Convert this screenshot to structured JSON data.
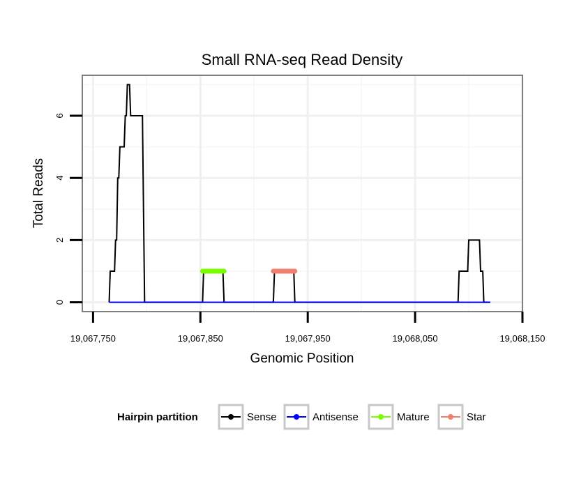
{
  "chart_data": {
    "type": "line",
    "title": "Small RNA-seq Read Density",
    "xlabel": "Genomic Position",
    "ylabel": "Total Reads",
    "xlim": [
      19067740,
      19068150
    ],
    "ylim": [
      -0.3,
      7.3
    ],
    "x_ticks": [
      19067750,
      19067850,
      19067950,
      19068050,
      19068150
    ],
    "x_tick_labels": [
      "19,067,750",
      "19,067,850",
      "19,067,950",
      "19,068,050",
      "19,068,150"
    ],
    "y_ticks": [
      0,
      2,
      4,
      6
    ],
    "y_tick_labels": [
      "0",
      "2",
      "4",
      "6"
    ],
    "grid": true,
    "series": [
      {
        "name": "Sense",
        "color": "#000000",
        "points": [
          [
            19067765,
            0
          ],
          [
            19067766,
            1
          ],
          [
            19067770,
            1
          ],
          [
            19067771,
            2
          ],
          [
            19067772,
            2
          ],
          [
            19067773,
            4
          ],
          [
            19067774,
            4
          ],
          [
            19067775,
            5
          ],
          [
            19067779,
            5
          ],
          [
            19067780,
            6
          ],
          [
            19067781,
            6
          ],
          [
            19067782,
            7
          ],
          [
            19067784,
            7
          ],
          [
            19067785,
            6
          ],
          [
            19067796,
            6
          ],
          [
            19067798,
            0
          ],
          [
            19067852,
            0
          ],
          [
            19067853,
            1
          ],
          [
            19067871,
            1
          ],
          [
            19067872,
            0
          ],
          [
            19067918,
            0
          ],
          [
            19067919,
            1
          ],
          [
            19067937,
            1
          ],
          [
            19067938,
            0
          ],
          [
            19068090,
            0
          ],
          [
            19068091,
            1
          ],
          [
            19068099,
            1
          ],
          [
            19068100,
            2
          ],
          [
            19068110,
            2
          ],
          [
            19068111,
            1
          ],
          [
            19068113,
            1
          ],
          [
            19068114,
            0
          ],
          [
            19068120,
            0
          ]
        ]
      },
      {
        "name": "Antisense",
        "color": "#0000ff",
        "points": [
          [
            19067765,
            0
          ],
          [
            19068120,
            0
          ]
        ]
      },
      {
        "name": "Mature",
        "color": "#7cfc00",
        "points": [
          [
            19067852,
            1
          ],
          [
            19067872,
            1
          ]
        ]
      },
      {
        "name": "Star",
        "color": "#f08070",
        "points": [
          [
            19067918,
            1
          ],
          [
            19067938,
            1
          ]
        ]
      }
    ],
    "legend": {
      "title": "Hairpin partition",
      "position": "bottom",
      "entries": [
        "Sense",
        "Antisense",
        "Mature",
        "Star"
      ]
    }
  }
}
